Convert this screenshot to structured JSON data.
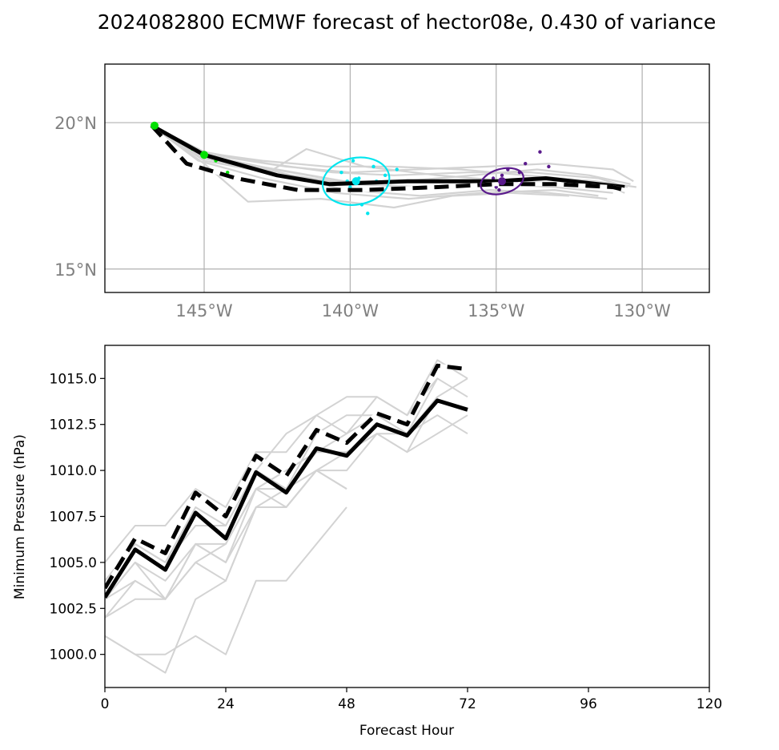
{
  "title": "2024082800 ECMWF forecast of hector08e, 0.430 of variance",
  "chart_data": [
    {
      "type": "map",
      "lon_ticks": [
        "145°W",
        "140°W",
        "135°W",
        "130°W"
      ],
      "lat_ticks": [
        "20°N",
        "15°N"
      ],
      "lon_range": [
        -148.4,
        -127.7
      ],
      "lat_range": [
        14.2,
        22.0
      ],
      "grid": true,
      "ensemble_color": "#d3d3d3",
      "ensemble_tracks": [
        [
          [
            -146.8,
            19.9
          ],
          [
            -145.0,
            19.0
          ],
          [
            -142.8,
            18.6
          ],
          [
            -140.6,
            18.3
          ],
          [
            -138.5,
            18.2
          ],
          [
            -136.0,
            18.3
          ],
          [
            -133.8,
            18.3
          ],
          [
            -131.5,
            18.1
          ],
          [
            -130.5,
            17.8
          ]
        ],
        [
          [
            -146.8,
            19.9
          ],
          [
            -145.0,
            18.8
          ],
          [
            -142.5,
            18.4
          ],
          [
            -140.2,
            18.0
          ],
          [
            -138.0,
            18.0
          ],
          [
            -135.5,
            18.0
          ],
          [
            -133.5,
            18.1
          ],
          [
            -131.2,
            17.9
          ],
          [
            -130.6,
            17.6
          ]
        ],
        [
          [
            -146.8,
            19.9
          ],
          [
            -145.0,
            18.9
          ],
          [
            -142.0,
            18.2
          ],
          [
            -140.0,
            17.9
          ],
          [
            -137.5,
            17.8
          ],
          [
            -135.0,
            17.9
          ],
          [
            -133.0,
            17.8
          ],
          [
            -131.0,
            17.6
          ]
        ],
        [
          [
            -146.8,
            19.9
          ],
          [
            -145.2,
            18.7
          ],
          [
            -143.0,
            18.1
          ],
          [
            -140.5,
            17.6
          ],
          [
            -138.0,
            17.4
          ],
          [
            -135.5,
            17.6
          ],
          [
            -133.0,
            17.7
          ],
          [
            -131.5,
            17.5
          ]
        ],
        [
          [
            -146.8,
            19.9
          ],
          [
            -144.8,
            18.9
          ],
          [
            -142.2,
            18.5
          ],
          [
            -140.0,
            18.3
          ],
          [
            -137.8,
            18.4
          ],
          [
            -135.3,
            18.5
          ],
          [
            -133.2,
            18.6
          ],
          [
            -131.0,
            18.4
          ],
          [
            -130.3,
            18.0
          ]
        ],
        [
          [
            -146.8,
            19.9
          ],
          [
            -145.0,
            18.6
          ],
          [
            -143.5,
            17.3
          ],
          [
            -141.0,
            17.4
          ],
          [
            -138.5,
            17.1
          ],
          [
            -136.5,
            17.5
          ],
          [
            -134.5,
            17.6
          ],
          [
            -132.5,
            17.5
          ]
        ],
        [
          [
            -146.8,
            19.9
          ],
          [
            -145.1,
            18.8
          ],
          [
            -142.8,
            18.3
          ],
          [
            -141.5,
            19.1
          ],
          [
            -139.5,
            18.5
          ],
          [
            -137.0,
            18.2
          ],
          [
            -134.5,
            18.0
          ],
          [
            -132.0,
            17.9
          ],
          [
            -130.7,
            17.7
          ]
        ],
        [
          [
            -146.8,
            19.9
          ],
          [
            -145.0,
            18.9
          ],
          [
            -142.6,
            18.4
          ],
          [
            -140.3,
            18.0
          ],
          [
            -138.2,
            18.0
          ],
          [
            -135.8,
            18.2
          ],
          [
            -133.6,
            18.4
          ],
          [
            -131.8,
            18.2
          ],
          [
            -130.4,
            17.9
          ]
        ],
        [
          [
            -146.8,
            19.9
          ],
          [
            -145.0,
            18.7
          ],
          [
            -142.3,
            18.2
          ],
          [
            -140.1,
            17.7
          ],
          [
            -137.6,
            17.5
          ],
          [
            -135.2,
            17.7
          ],
          [
            -133.2,
            17.6
          ],
          [
            -131.2,
            17.4
          ]
        ],
        [
          [
            -146.8,
            19.9
          ],
          [
            -145.2,
            19.0
          ],
          [
            -143.0,
            18.7
          ],
          [
            -140.8,
            18.5
          ],
          [
            -138.6,
            18.5
          ],
          [
            -136.2,
            18.4
          ],
          [
            -134.0,
            18.2
          ],
          [
            -131.6,
            18.0
          ],
          [
            -130.2,
            17.8
          ]
        ]
      ],
      "ensemble_mean_track": [
        [
          -146.8,
          19.9
        ],
        [
          -145.0,
          18.9
        ],
        [
          -142.5,
          18.2
        ],
        [
          -140.7,
          17.9
        ],
        [
          -138.0,
          18.0
        ],
        [
          -135.0,
          18.0
        ],
        [
          -133.3,
          18.1
        ],
        [
          -131.5,
          17.9
        ],
        [
          -130.6,
          17.8
        ]
      ],
      "deterministic_track": [
        [
          -146.8,
          19.9
        ],
        [
          -145.6,
          18.6
        ],
        [
          -143.9,
          18.1
        ],
        [
          -141.8,
          17.7
        ],
        [
          -139.5,
          17.7
        ],
        [
          -137.0,
          17.8
        ],
        [
          -135.0,
          17.9
        ],
        [
          -133.0,
          17.9
        ],
        [
          -131.0,
          17.8
        ],
        [
          -130.6,
          17.7
        ]
      ],
      "markers": [
        {
          "color": "#00e000",
          "center": [
            -146.7,
            19.9
          ],
          "points": [
            [
              -146.1,
              19.5
            ],
            [
              -144.2,
              18.3
            ]
          ]
        },
        {
          "color": "#00e000",
          "center": [
            -145.0,
            18.9
          ],
          "points": [
            [
              -145.4,
              19.1
            ],
            [
              -144.6,
              18.7
            ]
          ]
        },
        {
          "color": "#00e5ee",
          "center": [
            -139.8,
            18.0
          ],
          "ellipse": {
            "rx_deg": 1.15,
            "ry_deg": 0.8,
            "rotation_deg": -10
          },
          "points": [
            [
              -140.3,
              18.3
            ],
            [
              -139.9,
              18.7
            ],
            [
              -139.2,
              18.5
            ],
            [
              -138.8,
              18.2
            ],
            [
              -139.5,
              17.7
            ],
            [
              -139.6,
              17.2
            ],
            [
              -139.4,
              16.9
            ],
            [
              -140.1,
              18.0
            ],
            [
              -138.4,
              18.4
            ],
            [
              -139.7,
              18.1
            ],
            [
              -139.1,
              18.0
            ],
            [
              -140.0,
              17.8
            ]
          ]
        },
        {
          "color": "#5a1a8c",
          "center": [
            -134.8,
            18.0
          ],
          "ellipse": {
            "rx_deg": 0.75,
            "ry_deg": 0.42,
            "rotation_deg": -15
          },
          "points": [
            [
              -134.6,
              18.4
            ],
            [
              -134.2,
              18.3
            ],
            [
              -135.0,
              17.8
            ],
            [
              -134.9,
              17.7
            ],
            [
              -134.3,
              18.0
            ],
            [
              -133.5,
              19.0
            ],
            [
              -133.2,
              18.5
            ],
            [
              -134.8,
              18.2
            ],
            [
              -134.5,
              17.9
            ],
            [
              -134.0,
              18.6
            ],
            [
              -135.1,
              18.1
            ]
          ]
        }
      ]
    },
    {
      "type": "line",
      "xlabel": "Forecast Hour",
      "ylabel": "Minimum Pressure (hPa)",
      "xlim": [
        0,
        120
      ],
      "ylim": [
        998.2,
        1016.8
      ],
      "xticks": [
        0,
        24,
        48,
        72,
        96,
        120
      ],
      "yticks": [
        1000.0,
        1002.5,
        1005.0,
        1007.5,
        1010.0,
        1012.5,
        1015.0
      ],
      "ytick_labels": [
        "1000.0",
        "1002.5",
        "1005.0",
        "1007.5",
        "1010.0",
        "1012.5",
        "1015.0"
      ],
      "ensemble_color": "#d3d3d3",
      "ensemble": [
        {
          "x": [
            0,
            6,
            12,
            18,
            24,
            30,
            36,
            42,
            48
          ],
          "y": [
            1001,
            1000,
            1000,
            1001,
            1000,
            1004,
            1004,
            1006,
            1008
          ]
        },
        {
          "x": [
            0,
            6,
            12,
            18,
            24,
            30,
            36,
            42,
            48
          ],
          "y": [
            1001,
            1000,
            999,
            1003,
            1004,
            1008,
            1008,
            1010,
            1009
          ]
        },
        {
          "x": [
            0,
            6,
            12,
            18,
            24,
            30,
            36,
            42,
            48,
            54,
            60,
            66,
            72
          ],
          "y": [
            1003,
            1005,
            1004,
            1006,
            1005,
            1009,
            1009,
            1011,
            1012,
            1014,
            1013,
            1015,
            1014
          ]
        },
        {
          "x": [
            0,
            6,
            12,
            18,
            24,
            30,
            36,
            42,
            48,
            54,
            60,
            66,
            72
          ],
          "y": [
            1002,
            1003,
            1003,
            1005,
            1006,
            1009,
            1008,
            1010,
            1010,
            1012,
            1011,
            1012,
            1013
          ]
        },
        {
          "x": [
            0,
            6,
            12,
            18,
            24,
            30,
            36,
            42,
            48,
            54,
            60,
            66,
            72
          ],
          "y": [
            1004,
            1006,
            1005,
            1007,
            1007,
            1010,
            1009,
            1012,
            1013,
            1013,
            1012,
            1014,
            1015
          ]
        },
        {
          "x": [
            0,
            6,
            12,
            18,
            24,
            30,
            36,
            42,
            48,
            54,
            60,
            66,
            72
          ],
          "y": [
            1003,
            1004,
            1003,
            1006,
            1006,
            1009,
            1010,
            1011,
            1011,
            1012,
            1012,
            1013,
            1012
          ]
        },
        {
          "x": [
            0,
            6,
            12,
            18,
            24,
            30,
            36,
            42,
            48,
            54,
            60,
            66,
            72
          ],
          "y": [
            1005,
            1007,
            1007,
            1009,
            1008,
            1011,
            1011,
            1013,
            1014,
            1014,
            1013,
            1016,
            1015
          ]
        },
        {
          "x": [
            0,
            6,
            12,
            18,
            24,
            30,
            36,
            42,
            48,
            54,
            60,
            66
          ],
          "y": [
            1004,
            1006,
            1005,
            1008,
            1007,
            1010,
            1012,
            1013,
            1012,
            1013,
            1012,
            1015
          ]
        },
        {
          "x": [
            0,
            6,
            12,
            18,
            24,
            30,
            36,
            42,
            48,
            54,
            60,
            66
          ],
          "y": [
            1003,
            1005,
            1003,
            1006,
            1005,
            1008,
            1009,
            1010,
            1011,
            1012,
            1011,
            1014
          ]
        },
        {
          "x": [
            0,
            6,
            12,
            18,
            24,
            30,
            36,
            42,
            48
          ],
          "y": [
            1002,
            1004,
            1003,
            1005,
            1004,
            1008,
            1008,
            1010,
            1009
          ]
        }
      ],
      "series": [
        {
          "style": "solid",
          "x": [
            0,
            6,
            12,
            18,
            24,
            30,
            36,
            42,
            48,
            54,
            60,
            66,
            72
          ],
          "y": [
            1003.1,
            1005.7,
            1004.6,
            1007.7,
            1006.3,
            1009.9,
            1008.8,
            1011.2,
            1010.8,
            1012.5,
            1011.9,
            1013.8,
            1013.3
          ]
        },
        {
          "style": "dashed",
          "x": [
            0,
            6,
            12,
            18,
            24,
            30,
            36,
            42,
            48,
            54,
            60,
            66,
            72
          ],
          "y": [
            1003.6,
            1006.3,
            1005.5,
            1008.8,
            1007.5,
            1010.8,
            1009.7,
            1012.2,
            1011.5,
            1013.1,
            1012.5,
            1015.7,
            1015.5
          ]
        }
      ]
    }
  ]
}
